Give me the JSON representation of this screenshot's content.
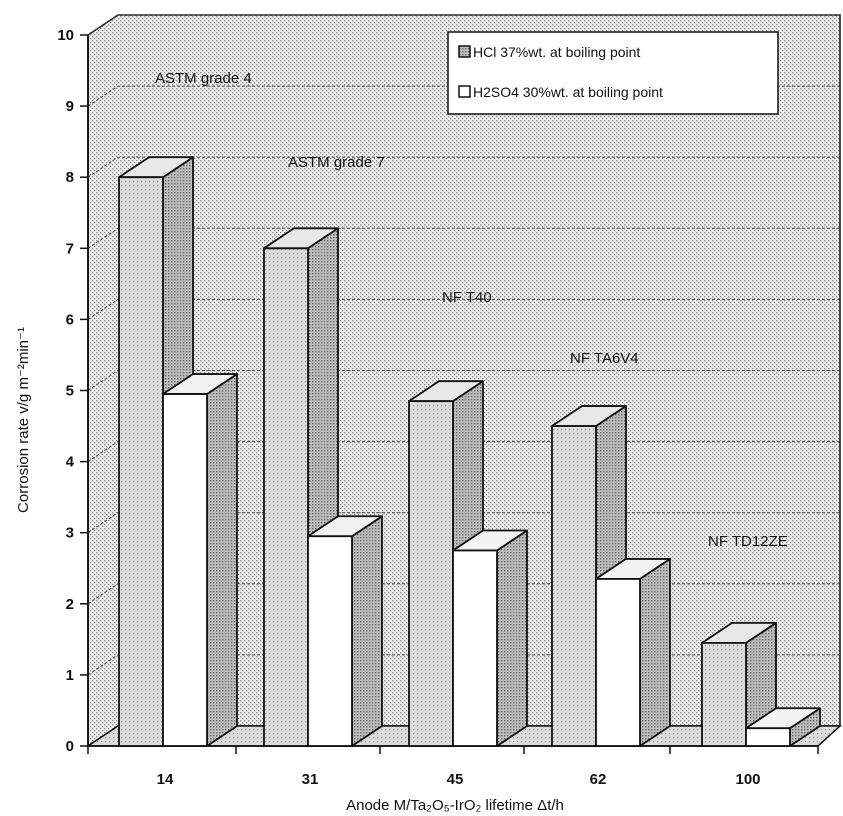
{
  "chart_data": {
    "type": "bar",
    "title": "",
    "xlabel": "Anode M/Ta₂O₅-IrO₂  lifetime  Δt/h",
    "ylabel": "Corrosion rate  v/g  m⁻²min⁻¹",
    "categories": [
      "14",
      "31",
      "45",
      "62",
      "100"
    ],
    "series": [
      {
        "name": "HCl 37%wt. at boiling point",
        "values": [
          8.0,
          7.0,
          4.85,
          4.5,
          1.45
        ]
      },
      {
        "name": "H2SO4 30%wt. at boiling point",
        "values": [
          4.95,
          2.95,
          2.75,
          2.35,
          0.25
        ]
      }
    ],
    "ylim": [
      0,
      10
    ],
    "yticks": [
      0,
      1,
      2,
      3,
      4,
      5,
      6,
      7,
      8,
      9,
      10
    ],
    "grid": true,
    "legend_position": "top-right",
    "annotations": [
      "ASTM grade 4",
      "ASTM grade 7",
      "NF T40",
      "NF TA6V4",
      "NF TD12ZE"
    ]
  },
  "colors": {
    "hcl_front": "#d4d4d4",
    "hcl_side": "#9a9a9a",
    "h2so4_front": "#ffffff",
    "h2so4_side": "#a9a9a9",
    "wall": "#e2e2e2",
    "floor": "#cfcfcf",
    "line": "#111111"
  }
}
